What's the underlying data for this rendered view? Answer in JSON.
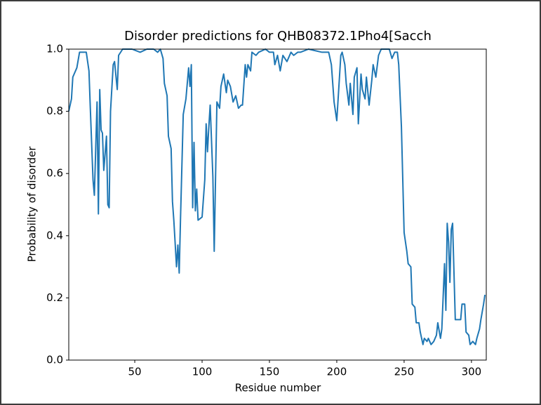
{
  "chart_data": {
    "type": "line",
    "title": "Disorder predictions for QHB08372.1Pho4[Sacch",
    "x_label": "Residue number",
    "y_label": "Probability of disorder",
    "color": "#1f77b4",
    "xlim": [
      1,
      311
    ],
    "ylim": [
      0,
      1
    ],
    "xticks": [
      50,
      100,
      150,
      200,
      250,
      300
    ],
    "yticks": [
      {
        "value": 0,
        "label": "0.0"
      },
      0.2,
      0.4,
      0.6,
      0.8,
      {
        "value": 1,
        "label": "1.0"
      }
    ],
    "x": [
      1,
      3,
      4,
      7,
      9,
      12,
      14,
      16,
      17,
      19,
      20,
      22,
      23,
      24,
      25,
      26,
      27,
      29,
      30,
      31,
      32,
      34,
      35,
      37,
      38,
      41,
      48,
      54,
      59,
      64,
      67,
      69,
      71,
      72,
      74,
      75,
      77,
      78,
      79,
      81,
      82,
      83,
      84,
      86,
      88,
      90,
      91,
      92,
      93,
      94,
      95,
      96,
      97,
      100,
      102,
      103,
      104,
      105,
      106,
      108,
      109,
      111,
      113,
      114,
      116,
      118,
      119,
      121,
      123,
      125,
      127,
      129,
      130,
      132,
      133,
      134,
      136,
      137,
      140,
      142,
      147,
      150,
      153,
      154,
      156,
      158,
      160,
      163,
      166,
      168,
      171,
      173,
      179,
      189,
      194,
      196,
      198,
      200,
      201,
      203,
      204,
      206,
      207,
      209,
      210,
      212,
      213,
      215,
      216,
      218,
      219,
      221,
      222,
      224,
      226,
      227,
      229,
      231,
      233,
      239,
      241,
      243,
      245,
      246,
      248,
      250,
      252,
      253,
      255,
      256,
      258,
      259,
      261,
      262,
      264,
      265,
      267,
      268,
      270,
      272,
      274,
      275,
      277,
      278,
      280,
      281,
      282,
      283,
      284,
      285,
      286,
      288,
      290,
      292,
      293,
      295,
      296,
      298,
      299,
      301,
      303,
      304,
      306,
      307,
      309,
      310
    ],
    "values": [
      0.8,
      0.84,
      0.91,
      0.94,
      0.99,
      0.99,
      0.99,
      0.93,
      0.81,
      0.58,
      0.53,
      0.83,
      0.47,
      0.87,
      0.74,
      0.73,
      0.61,
      0.72,
      0.5,
      0.49,
      0.8,
      0.95,
      0.96,
      0.87,
      0.98,
      1.0,
      1.0,
      0.99,
      1.0,
      1.0,
      0.99,
      1.0,
      0.97,
      0.89,
      0.85,
      0.72,
      0.68,
      0.51,
      0.45,
      0.3,
      0.37,
      0.28,
      0.46,
      0.79,
      0.84,
      0.94,
      0.88,
      0.95,
      0.49,
      0.7,
      0.48,
      0.55,
      0.45,
      0.46,
      0.58,
      0.76,
      0.67,
      0.75,
      0.82,
      0.59,
      0.35,
      0.83,
      0.81,
      0.88,
      0.92,
      0.86,
      0.9,
      0.88,
      0.83,
      0.85,
      0.81,
      0.82,
      0.82,
      0.95,
      0.91,
      0.95,
      0.93,
      0.99,
      0.98,
      0.99,
      1.0,
      0.99,
      0.99,
      0.95,
      0.98,
      0.93,
      0.98,
      0.96,
      0.99,
      0.98,
      0.99,
      0.99,
      1.0,
      0.99,
      0.99,
      0.95,
      0.83,
      0.77,
      0.84,
      0.98,
      0.99,
      0.95,
      0.89,
      0.82,
      0.89,
      0.79,
      0.91,
      0.94,
      0.76,
      0.92,
      0.87,
      0.84,
      0.91,
      0.82,
      0.9,
      0.95,
      0.91,
      0.98,
      1.0,
      1.0,
      0.97,
      0.99,
      0.99,
      0.95,
      0.75,
      0.41,
      0.35,
      0.31,
      0.3,
      0.18,
      0.17,
      0.12,
      0.12,
      0.09,
      0.05,
      0.07,
      0.06,
      0.07,
      0.05,
      0.06,
      0.08,
      0.12,
      0.07,
      0.1,
      0.31,
      0.16,
      0.44,
      0.38,
      0.25,
      0.42,
      0.44,
      0.13,
      0.13,
      0.13,
      0.18,
      0.18,
      0.09,
      0.08,
      0.05,
      0.06,
      0.05,
      0.07,
      0.1,
      0.13,
      0.18,
      0.21
    ]
  }
}
